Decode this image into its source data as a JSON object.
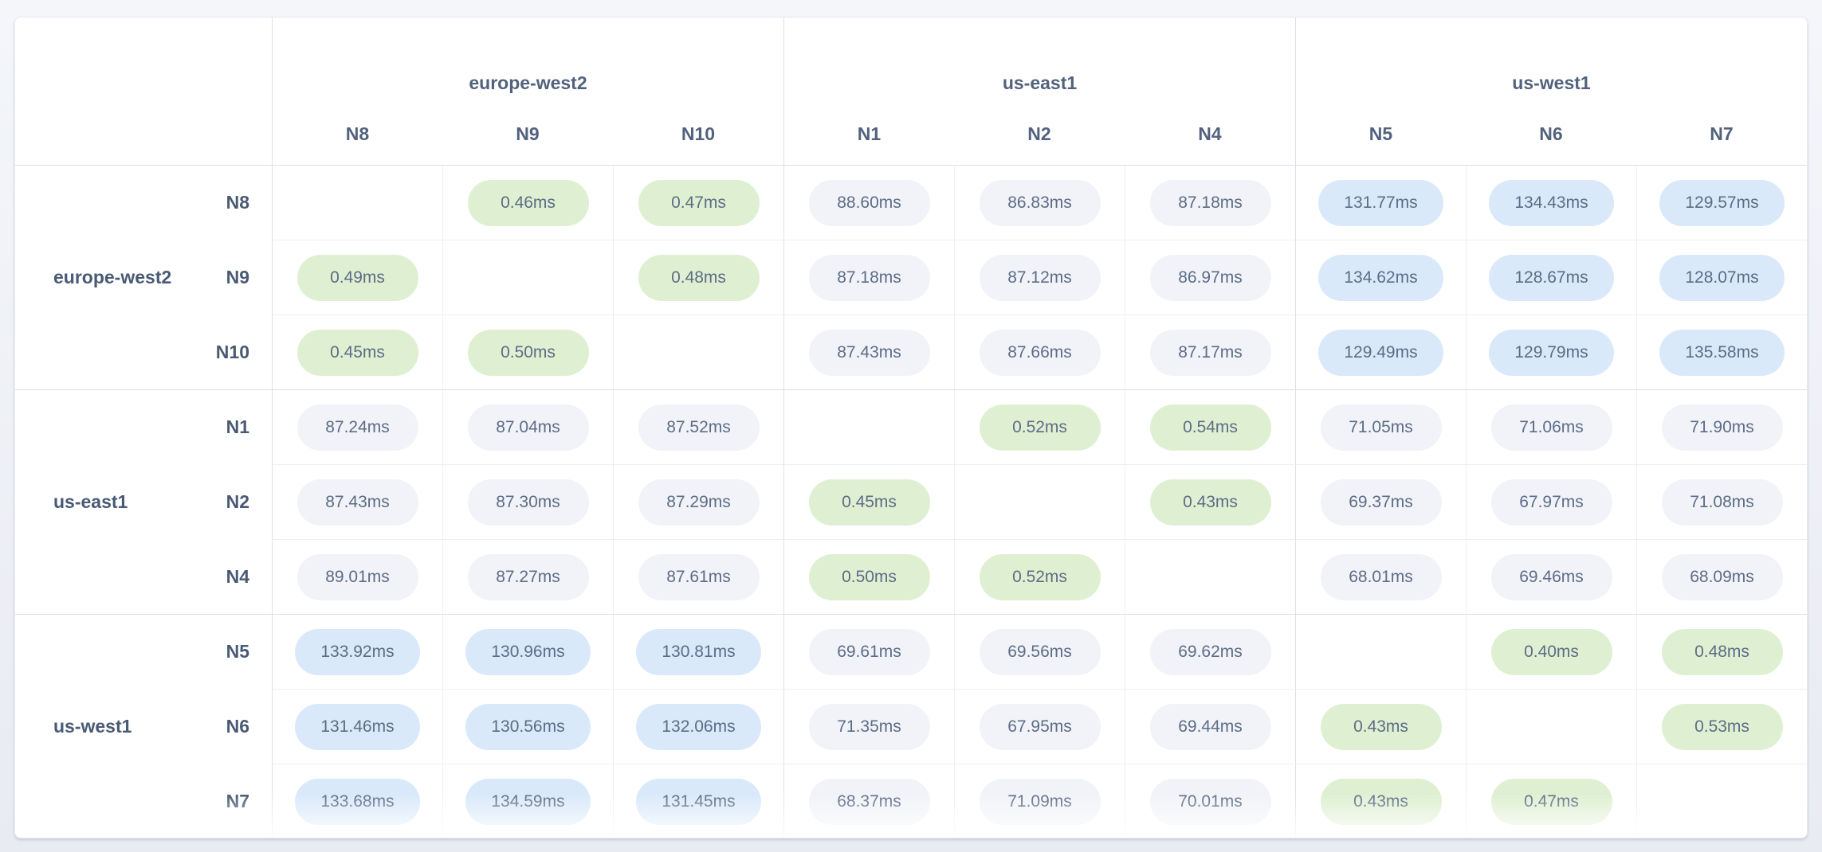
{
  "table": {
    "unit_suffix": "ms",
    "column_groups": [
      {
        "region": "europe-west2",
        "nodes": [
          "N8",
          "N9",
          "N10"
        ]
      },
      {
        "region": "us-east1",
        "nodes": [
          "N1",
          "N2",
          "N4"
        ]
      },
      {
        "region": "us-west1",
        "nodes": [
          "N5",
          "N6",
          "N7"
        ]
      }
    ],
    "row_groups": [
      {
        "region": "europe-west2",
        "rows": [
          {
            "node": "N8",
            "cells": [
              "",
              "0.46ms",
              "0.47ms",
              "88.60ms",
              "86.83ms",
              "87.18ms",
              "131.77ms",
              "134.43ms",
              "129.57ms"
            ]
          },
          {
            "node": "N9",
            "cells": [
              "0.49ms",
              "",
              "0.48ms",
              "87.18ms",
              "87.12ms",
              "86.97ms",
              "134.62ms",
              "128.67ms",
              "128.07ms"
            ]
          },
          {
            "node": "N10",
            "cells": [
              "0.45ms",
              "0.50ms",
              "",
              "87.43ms",
              "87.66ms",
              "87.17ms",
              "129.49ms",
              "129.79ms",
              "135.58ms"
            ]
          }
        ]
      },
      {
        "region": "us-east1",
        "rows": [
          {
            "node": "N1",
            "cells": [
              "87.24ms",
              "87.04ms",
              "87.52ms",
              "",
              "0.52ms",
              "0.54ms",
              "71.05ms",
              "71.06ms",
              "71.90ms"
            ]
          },
          {
            "node": "N2",
            "cells": [
              "87.43ms",
              "87.30ms",
              "87.29ms",
              "0.45ms",
              "",
              "0.43ms",
              "69.37ms",
              "67.97ms",
              "71.08ms"
            ]
          },
          {
            "node": "N4",
            "cells": [
              "89.01ms",
              "87.27ms",
              "87.61ms",
              "0.50ms",
              "0.52ms",
              "",
              "68.01ms",
              "69.46ms",
              "68.09ms"
            ]
          }
        ]
      },
      {
        "region": "us-west1",
        "rows": [
          {
            "node": "N5",
            "cells": [
              "133.92ms",
              "130.96ms",
              "130.81ms",
              "69.61ms",
              "69.56ms",
              "69.62ms",
              "",
              "0.40ms",
              "0.48ms"
            ]
          },
          {
            "node": "N6",
            "cells": [
              "131.46ms",
              "130.56ms",
              "132.06ms",
              "71.35ms",
              "67.95ms",
              "69.44ms",
              "0.43ms",
              "",
              "0.53ms"
            ]
          },
          {
            "node": "N7",
            "cells": [
              "133.68ms",
              "134.59ms",
              "131.45ms",
              "68.37ms",
              "71.09ms",
              "70.01ms",
              "0.43ms",
              "0.47ms",
              ""
            ]
          }
        ]
      }
    ]
  },
  "colors": {
    "page_bg_top": "#f4f6fa",
    "page_bg_bottom": "#e9ebf2",
    "card_bg": "#ffffff",
    "card_border": "#e7eaf1",
    "group_line": "#dbe0e9",
    "inner_line": "#edeff4",
    "header_text": "#52627c",
    "label_text": "#495a74",
    "pill_text": "#5d6c86",
    "pill_fast_bg": "#dff0d2",
    "pill_medium_bg": "#f1f3f8",
    "pill_slow_bg": "#d9e9fa"
  },
  "chart_data": {
    "type": "heatmap",
    "unit": "ms",
    "rows": [
      "N8",
      "N9",
      "N10",
      "N1",
      "N2",
      "N4",
      "N5",
      "N6",
      "N7"
    ],
    "columns": [
      "N8",
      "N9",
      "N10",
      "N1",
      "N2",
      "N4",
      "N5",
      "N6",
      "N7"
    ],
    "region_groups": [
      {
        "region": "europe-west2",
        "nodes": [
          "N8",
          "N9",
          "N10"
        ]
      },
      {
        "region": "us-east1",
        "nodes": [
          "N1",
          "N2",
          "N4"
        ]
      },
      {
        "region": "us-west1",
        "nodes": [
          "N5",
          "N6",
          "N7"
        ]
      }
    ],
    "matrix_ms": [
      [
        null,
        0.46,
        0.47,
        88.6,
        86.83,
        87.18,
        131.77,
        134.43,
        129.57
      ],
      [
        0.49,
        null,
        0.48,
        87.18,
        87.12,
        86.97,
        134.62,
        128.67,
        128.07
      ],
      [
        0.45,
        0.5,
        null,
        87.43,
        87.66,
        87.17,
        129.49,
        129.79,
        135.58
      ],
      [
        87.24,
        87.04,
        87.52,
        null,
        0.52,
        0.54,
        71.05,
        71.06,
        71.9
      ],
      [
        87.43,
        87.3,
        87.29,
        0.45,
        null,
        0.43,
        69.37,
        67.97,
        71.08
      ],
      [
        89.01,
        87.27,
        87.61,
        0.5,
        0.52,
        null,
        68.01,
        69.46,
        68.09
      ],
      [
        133.92,
        130.96,
        130.81,
        69.61,
        69.56,
        69.62,
        null,
        0.4,
        0.48
      ],
      [
        131.46,
        130.56,
        132.06,
        71.35,
        67.95,
        69.44,
        0.43,
        null,
        0.53
      ],
      [
        133.68,
        134.59,
        131.45,
        68.37,
        71.09,
        70.01,
        0.43,
        0.47,
        null
      ]
    ],
    "color_coding": {
      "under_1ms": "green (intra-region)",
      "1_to_100ms": "gray (inter-region)",
      "over_100ms": "blue (inter-region slow)"
    },
    "legend_position": "none",
    "grid": true
  }
}
